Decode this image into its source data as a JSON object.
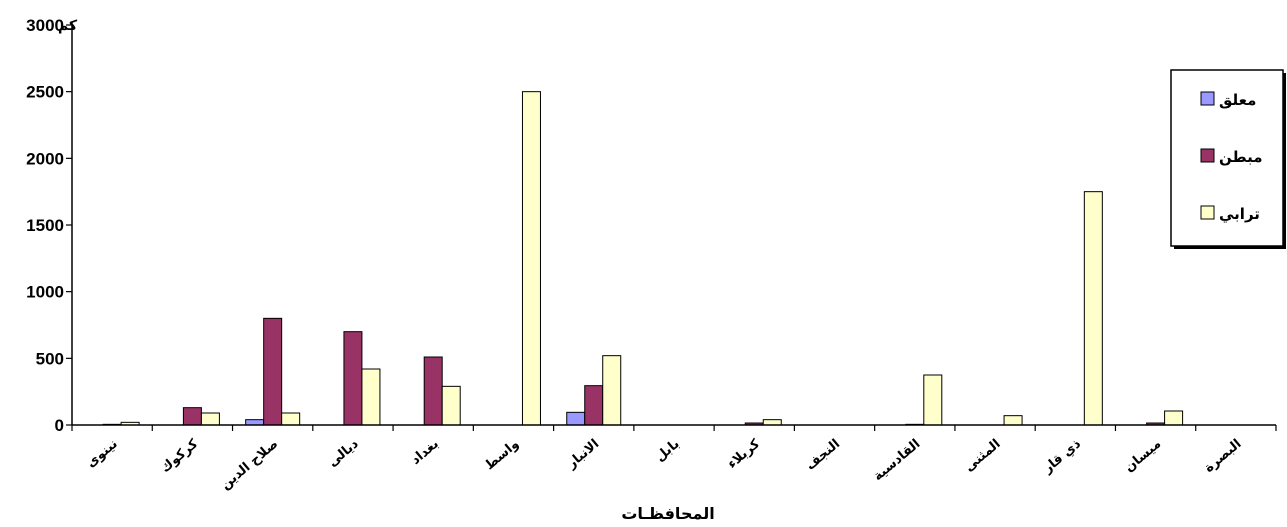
{
  "chart_data": {
    "type": "bar",
    "title": "",
    "xlabel": "المحافظـات",
    "ylabel": "",
    "y_unit": "كم",
    "ylim": [
      0,
      3000
    ],
    "yticks": [
      0,
      500,
      1000,
      1500,
      2000,
      2500,
      3000
    ],
    "grid": false,
    "legend_position": "right",
    "categories": [
      "نينوى",
      "كركوك",
      "صلاح الدين",
      "ديالى",
      "بغداد",
      "واسط",
      "الانبار",
      "بابل",
      "كربلاء",
      "النجف",
      "القادسية",
      "المثنى",
      "ذي قار",
      "ميسان",
      "البصرة"
    ],
    "series": [
      {
        "name": "معلق",
        "color": "#9999FF",
        "values": [
          0,
          0,
          40,
          0,
          0,
          0,
          95,
          0,
          0,
          0,
          0,
          0,
          0,
          0,
          0
        ]
      },
      {
        "name": "مبطن",
        "color": "#993366",
        "values": [
          5,
          130,
          800,
          700,
          510,
          0,
          295,
          0,
          15,
          0,
          5,
          0,
          0,
          15,
          0
        ]
      },
      {
        "name": "ترابي",
        "color": "#FFFFCC",
        "values": [
          20,
          90,
          90,
          420,
          290,
          2500,
          520,
          0,
          40,
          0,
          375,
          70,
          1750,
          105,
          0
        ]
      }
    ]
  }
}
